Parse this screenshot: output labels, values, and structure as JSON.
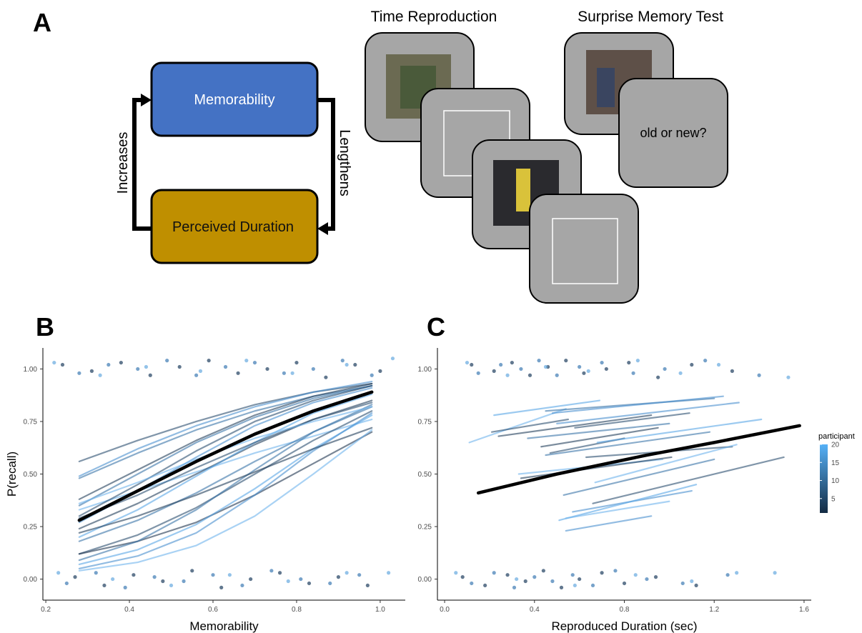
{
  "panel_labels": [
    "A",
    "B",
    "C"
  ],
  "diagram": {
    "nodes": [
      {
        "label": "Memorability",
        "color": "#4472c4"
      },
      {
        "label": "Perceived Duration",
        "color": "#bf8f00"
      }
    ],
    "edges": [
      {
        "label": "Increases"
      },
      {
        "label": "Lengthens"
      }
    ]
  },
  "task": {
    "sections": [
      {
        "title": "Time Reproduction"
      },
      {
        "title": "Surprise Memory Test",
        "prompt": "old or new?"
      }
    ]
  },
  "chart_data": [
    {
      "type": "scatter",
      "x_label": "Memorability",
      "y_label": "P(recall)",
      "xlim": [
        0.193,
        1.06
      ],
      "ylim": [
        -0.1,
        1.1
      ],
      "xticks": [
        0.2,
        0.4,
        0.6,
        0.8,
        {
          "value": 1,
          "label": "1.0"
        }
      ],
      "yticks": [
        {
          "value": 0,
          "label": "0.00"
        },
        0.25,
        {
          "value": 0.5,
          "label": "0.50"
        },
        0.75,
        {
          "value": 1,
          "label": "1.00"
        }
      ],
      "points": [
        {
          "color": "#1f3f5f",
          "x": [
            0.24,
            0.31,
            0.38,
            0.45,
            0.52,
            0.59,
            0.66,
            0.73,
            0.8,
            0.87,
            0.94,
            1.0,
            0.27,
            0.34,
            0.41,
            0.48,
            0.55,
            0.62,
            0.69,
            0.76,
            0.83,
            0.9,
            0.97
          ],
          "values": [
            1.02,
            0.99,
            1.03,
            0.97,
            1.01,
            1.04,
            0.98,
            1.0,
            1.03,
            0.96,
            1.02,
            0.99,
            0.01,
            -0.03,
            0.02,
            -0.01,
            0.04,
            -0.04,
            0.0,
            0.03,
            -0.02,
            0.01,
            -0.03
          ]
        },
        {
          "color": "#3d7ab3",
          "x": [
            0.28,
            0.35,
            0.42,
            0.49,
            0.56,
            0.63,
            0.7,
            0.77,
            0.84,
            0.91,
            0.98,
            0.25,
            0.32,
            0.39,
            0.46,
            0.53,
            0.6,
            0.67,
            0.74,
            0.81,
            0.88,
            0.95
          ],
          "values": [
            0.98,
            1.02,
            1.0,
            1.04,
            0.97,
            1.01,
            1.03,
            0.98,
            1.0,
            1.04,
            0.97,
            -0.02,
            0.03,
            -0.04,
            0.01,
            -0.01,
            0.02,
            -0.03,
            0.04,
            0.0,
            -0.02,
            0.02
          ]
        },
        {
          "color": "#66a9e0",
          "x": [
            0.22,
            0.33,
            0.44,
            0.57,
            0.68,
            0.79,
            0.92,
            1.03,
            0.23,
            0.36,
            0.5,
            0.64,
            0.78,
            0.92,
            1.02
          ],
          "values": [
            1.03,
            0.97,
            1.01,
            0.99,
            1.04,
            0.98,
            1.02,
            1.05,
            0.03,
            0.0,
            -0.03,
            0.02,
            -0.01,
            0.03,
            0.03
          ]
        }
      ],
      "line_x": [
        0.28,
        0.42,
        0.56,
        0.7,
        0.84,
        0.98
      ],
      "series": [
        {
          "color": "#2c4e70",
          "values": [
            0.56,
            0.66,
            0.75,
            0.83,
            0.89,
            0.93
          ]
        },
        {
          "color": "#4a90cf",
          "values": [
            0.49,
            0.62,
            0.73,
            0.82,
            0.89,
            0.94
          ]
        },
        {
          "color": "#3b75a8",
          "values": [
            0.48,
            0.6,
            0.71,
            0.8,
            0.87,
            0.92
          ]
        },
        {
          "color": "#233f5c",
          "values": [
            0.38,
            0.52,
            0.66,
            0.78,
            0.87,
            0.93
          ]
        },
        {
          "color": "#3b75a8",
          "values": [
            0.35,
            0.5,
            0.65,
            0.77,
            0.86,
            0.92
          ]
        },
        {
          "color": "#6fb4ec",
          "values": [
            0.33,
            0.42,
            0.51,
            0.6,
            0.68,
            0.76
          ]
        },
        {
          "color": "#2c4e70",
          "values": [
            0.3,
            0.45,
            0.61,
            0.75,
            0.85,
            0.92
          ]
        },
        {
          "color": "#4a90cf",
          "values": [
            0.27,
            0.42,
            0.58,
            0.73,
            0.84,
            0.91
          ]
        },
        {
          "color": "#233f5c",
          "values": [
            0.24,
            0.36,
            0.5,
            0.64,
            0.76,
            0.85
          ]
        },
        {
          "color": "#5aa6e6",
          "values": [
            0.2,
            0.33,
            0.49,
            0.65,
            0.79,
            0.88
          ]
        },
        {
          "color": "#3b75a8",
          "values": [
            0.18,
            0.28,
            0.41,
            0.56,
            0.7,
            0.82
          ]
        },
        {
          "color": "#2c4e70",
          "values": [
            0.12,
            0.21,
            0.34,
            0.5,
            0.66,
            0.8
          ]
        },
        {
          "color": "#1f3550",
          "values": [
            0.12,
            0.18,
            0.27,
            0.4,
            0.55,
            0.7
          ]
        },
        {
          "color": "#5aa6e6",
          "values": [
            0.07,
            0.14,
            0.26,
            0.43,
            0.62,
            0.78
          ]
        },
        {
          "color": "#6fb4ec",
          "values": [
            0.04,
            0.08,
            0.16,
            0.3,
            0.5,
            0.71
          ]
        },
        {
          "color": "#4a90cf",
          "values": [
            0.05,
            0.11,
            0.22,
            0.4,
            0.61,
            0.79
          ]
        },
        {
          "color": "#3b75a8",
          "values": [
            0.09,
            0.18,
            0.33,
            0.52,
            0.7,
            0.83
          ]
        },
        {
          "color": "#2c4e70",
          "values": [
            0.29,
            0.4,
            0.53,
            0.65,
            0.76,
            0.84
          ]
        },
        {
          "color": "#6fb4ec",
          "values": [
            0.36,
            0.46,
            0.57,
            0.67,
            0.75,
            0.82
          ]
        },
        {
          "color": "#233f5c",
          "values": [
            0.22,
            0.3,
            0.4,
            0.51,
            0.62,
            0.72
          ]
        }
      ],
      "mean": {
        "color": "#000000",
        "x": [
          0.28,
          0.42,
          0.56,
          0.7,
          0.84,
          0.98
        ],
        "values": [
          0.28,
          0.42,
          0.56,
          0.69,
          0.8,
          0.89
        ]
      }
    },
    {
      "type": "scatter",
      "x_label": "Reproduced Duration (sec)",
      "xlim": [
        -0.032,
        1.632
      ],
      "ylim": [
        -0.1,
        1.1
      ],
      "xticks": [
        {
          "value": 0,
          "label": "0.0"
        },
        0.4,
        0.8,
        1.2,
        1.6
      ],
      "yticks": [
        {
          "value": 0,
          "label": "0.00"
        },
        0.25,
        {
          "value": 0.5,
          "label": "0.50"
        },
        0.75,
        {
          "value": 1,
          "label": "1.00"
        }
      ],
      "points": [
        {
          "color": "#1f3f5f",
          "x": [
            0.12,
            0.22,
            0.3,
            0.38,
            0.46,
            0.54,
            0.62,
            0.72,
            0.82,
            0.95,
            1.1,
            1.28,
            0.08,
            0.18,
            0.28,
            0.36,
            0.44,
            0.52,
            0.6,
            0.7,
            0.8,
            0.94,
            1.12
          ],
          "values": [
            1.02,
            0.99,
            1.03,
            0.97,
            1.01,
            1.04,
            0.98,
            1.0,
            1.03,
            0.96,
            1.02,
            0.99,
            0.01,
            -0.03,
            0.02,
            -0.01,
            0.04,
            -0.04,
            0.0,
            0.03,
            -0.02,
            0.01,
            -0.03
          ]
        },
        {
          "color": "#3d7ab3",
          "x": [
            0.15,
            0.25,
            0.34,
            0.42,
            0.5,
            0.6,
            0.7,
            0.84,
            0.98,
            1.16,
            1.4,
            0.12,
            0.22,
            0.31,
            0.4,
            0.48,
            0.57,
            0.66,
            0.76,
            0.9,
            1.06,
            1.26
          ],
          "values": [
            0.98,
            1.02,
            1.0,
            1.04,
            0.97,
            1.01,
            1.03,
            0.98,
            1.0,
            1.04,
            0.97,
            -0.02,
            0.03,
            -0.04,
            0.01,
            -0.01,
            0.02,
            -0.03,
            0.04,
            0.0,
            -0.02,
            0.02
          ]
        },
        {
          "color": "#66a9e0",
          "x": [
            0.1,
            0.28,
            0.45,
            0.64,
            0.86,
            1.05,
            1.22,
            1.53,
            0.05,
            0.32,
            0.58,
            0.85,
            1.1,
            1.3,
            1.47
          ],
          "values": [
            1.03,
            0.97,
            1.01,
            0.99,
            1.04,
            0.98,
            1.02,
            0.96,
            0.03,
            0.0,
            -0.03,
            0.02,
            -0.01,
            0.03,
            0.03
          ]
        }
      ],
      "series": [
        {
          "color": "#6fb4ec",
          "x": [
            0.11,
            0.54
          ],
          "values": [
            0.65,
            0.81
          ]
        },
        {
          "color": "#5aa6e6",
          "x": [
            0.22,
            0.69
          ],
          "values": [
            0.78,
            0.85
          ]
        },
        {
          "color": "#3b75a8",
          "x": [
            0.45,
            1.2
          ],
          "values": [
            0.8,
            0.86
          ]
        },
        {
          "color": "#4a90cf",
          "x": [
            0.48,
            1.24
          ],
          "values": [
            0.79,
            0.87
          ]
        },
        {
          "color": "#2c4e70",
          "x": [
            0.21,
            0.55
          ],
          "values": [
            0.7,
            0.76
          ]
        },
        {
          "color": "#233f5c",
          "x": [
            0.24,
            0.92
          ],
          "values": [
            0.68,
            0.78
          ]
        },
        {
          "color": "#4a90cf",
          "x": [
            0.5,
            1.31
          ],
          "values": [
            0.74,
            0.84
          ]
        },
        {
          "color": "#2c4e70",
          "x": [
            0.58,
            1.09
          ],
          "values": [
            0.72,
            0.79
          ]
        },
        {
          "color": "#3b75a8",
          "x": [
            0.37,
            1.0
          ],
          "values": [
            0.67,
            0.74
          ]
        },
        {
          "color": "#233f5c",
          "x": [
            0.43,
            0.95
          ],
          "values": [
            0.63,
            0.72
          ]
        },
        {
          "color": "#2c4e70",
          "x": [
            0.47,
            0.8
          ],
          "values": [
            0.6,
            0.67
          ]
        },
        {
          "color": "#3b75a8",
          "x": [
            0.45,
            1.18
          ],
          "values": [
            0.59,
            0.7
          ]
        },
        {
          "color": "#5aa6e6",
          "x": [
            0.68,
            1.41
          ],
          "values": [
            0.65,
            0.76
          ]
        },
        {
          "color": "#2c4e70",
          "x": [
            0.63,
            1.28
          ],
          "values": [
            0.58,
            0.63
          ]
        },
        {
          "color": "#6fb4ec",
          "x": [
            0.33,
            0.97
          ],
          "values": [
            0.5,
            0.57
          ]
        },
        {
          "color": "#233f5c",
          "x": [
            0.34,
            1.01
          ],
          "values": [
            0.48,
            0.58
          ]
        },
        {
          "color": "#3b75a8",
          "x": [
            0.53,
            1.2
          ],
          "values": [
            0.4,
            0.57
          ]
        },
        {
          "color": "#6fb4ec",
          "x": [
            0.67,
            1.3
          ],
          "values": [
            0.46,
            0.64
          ]
        },
        {
          "color": "#2c4e70",
          "x": [
            0.66,
            1.51
          ],
          "values": [
            0.36,
            0.58
          ]
        },
        {
          "color": "#4a90cf",
          "x": [
            0.57,
            1.1
          ],
          "values": [
            0.32,
            0.42
          ]
        },
        {
          "color": "#5aa6e6",
          "x": [
            0.51,
            1.12
          ],
          "values": [
            0.28,
            0.45
          ]
        },
        {
          "color": "#6fb4ec",
          "x": [
            0.54,
            1.0
          ],
          "values": [
            0.29,
            0.37
          ]
        },
        {
          "color": "#4a90cf",
          "x": [
            0.54,
            0.92
          ],
          "values": [
            0.23,
            0.3
          ]
        }
      ],
      "mean": {
        "color": "#000000",
        "x": [
          0.15,
          0.5,
          0.9,
          1.2,
          1.58
        ],
        "values": [
          0.41,
          0.5,
          0.59,
          0.65,
          0.73
        ]
      },
      "legend": {
        "title": "participant",
        "lim": [
          1,
          20
        ],
        "ticks": [
          5,
          10,
          15,
          20
        ],
        "colors": [
          "#132b43",
          "#56b1f7"
        ]
      }
    }
  ]
}
